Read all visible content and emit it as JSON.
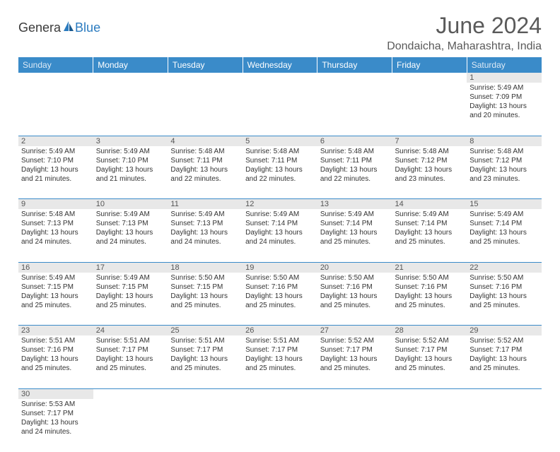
{
  "logo": {
    "text1": "Genera",
    "text2": "Blue"
  },
  "title": "June 2024",
  "location": "Dondaicha, Maharashtra, India",
  "colors": {
    "header_bg": "#3a8bc9",
    "header_fg": "#ffffff",
    "header_weekend_fg": "#dce9f5",
    "daynum_bg": "#e8e8e8",
    "daynum_fg": "#555555",
    "border": "#3a8bc9",
    "logo_accent": "#2b7bbf",
    "text": "#333333"
  },
  "weekdays": [
    "Sunday",
    "Monday",
    "Tuesday",
    "Wednesday",
    "Thursday",
    "Friday",
    "Saturday"
  ],
  "weeks": [
    {
      "nums": [
        "",
        "",
        "",
        "",
        "",
        "",
        "1"
      ],
      "cells": [
        null,
        null,
        null,
        null,
        null,
        null,
        {
          "sr": "5:49 AM",
          "ss": "7:09 PM",
          "dl": "13 hours and 20 minutes."
        }
      ]
    },
    {
      "nums": [
        "2",
        "3",
        "4",
        "5",
        "6",
        "7",
        "8"
      ],
      "cells": [
        {
          "sr": "5:49 AM",
          "ss": "7:10 PM",
          "dl": "13 hours and 21 minutes."
        },
        {
          "sr": "5:49 AM",
          "ss": "7:10 PM",
          "dl": "13 hours and 21 minutes."
        },
        {
          "sr": "5:48 AM",
          "ss": "7:11 PM",
          "dl": "13 hours and 22 minutes."
        },
        {
          "sr": "5:48 AM",
          "ss": "7:11 PM",
          "dl": "13 hours and 22 minutes."
        },
        {
          "sr": "5:48 AM",
          "ss": "7:11 PM",
          "dl": "13 hours and 22 minutes."
        },
        {
          "sr": "5:48 AM",
          "ss": "7:12 PM",
          "dl": "13 hours and 23 minutes."
        },
        {
          "sr": "5:48 AM",
          "ss": "7:12 PM",
          "dl": "13 hours and 23 minutes."
        }
      ]
    },
    {
      "nums": [
        "9",
        "10",
        "11",
        "12",
        "13",
        "14",
        "15"
      ],
      "cells": [
        {
          "sr": "5:48 AM",
          "ss": "7:13 PM",
          "dl": "13 hours and 24 minutes."
        },
        {
          "sr": "5:49 AM",
          "ss": "7:13 PM",
          "dl": "13 hours and 24 minutes."
        },
        {
          "sr": "5:49 AM",
          "ss": "7:13 PM",
          "dl": "13 hours and 24 minutes."
        },
        {
          "sr": "5:49 AM",
          "ss": "7:14 PM",
          "dl": "13 hours and 24 minutes."
        },
        {
          "sr": "5:49 AM",
          "ss": "7:14 PM",
          "dl": "13 hours and 25 minutes."
        },
        {
          "sr": "5:49 AM",
          "ss": "7:14 PM",
          "dl": "13 hours and 25 minutes."
        },
        {
          "sr": "5:49 AM",
          "ss": "7:14 PM",
          "dl": "13 hours and 25 minutes."
        }
      ]
    },
    {
      "nums": [
        "16",
        "17",
        "18",
        "19",
        "20",
        "21",
        "22"
      ],
      "cells": [
        {
          "sr": "5:49 AM",
          "ss": "7:15 PM",
          "dl": "13 hours and 25 minutes."
        },
        {
          "sr": "5:49 AM",
          "ss": "7:15 PM",
          "dl": "13 hours and 25 minutes."
        },
        {
          "sr": "5:50 AM",
          "ss": "7:15 PM",
          "dl": "13 hours and 25 minutes."
        },
        {
          "sr": "5:50 AM",
          "ss": "7:16 PM",
          "dl": "13 hours and 25 minutes."
        },
        {
          "sr": "5:50 AM",
          "ss": "7:16 PM",
          "dl": "13 hours and 25 minutes."
        },
        {
          "sr": "5:50 AM",
          "ss": "7:16 PM",
          "dl": "13 hours and 25 minutes."
        },
        {
          "sr": "5:50 AM",
          "ss": "7:16 PM",
          "dl": "13 hours and 25 minutes."
        }
      ]
    },
    {
      "nums": [
        "23",
        "24",
        "25",
        "26",
        "27",
        "28",
        "29"
      ],
      "cells": [
        {
          "sr": "5:51 AM",
          "ss": "7:16 PM",
          "dl": "13 hours and 25 minutes."
        },
        {
          "sr": "5:51 AM",
          "ss": "7:17 PM",
          "dl": "13 hours and 25 minutes."
        },
        {
          "sr": "5:51 AM",
          "ss": "7:17 PM",
          "dl": "13 hours and 25 minutes."
        },
        {
          "sr": "5:51 AM",
          "ss": "7:17 PM",
          "dl": "13 hours and 25 minutes."
        },
        {
          "sr": "5:52 AM",
          "ss": "7:17 PM",
          "dl": "13 hours and 25 minutes."
        },
        {
          "sr": "5:52 AM",
          "ss": "7:17 PM",
          "dl": "13 hours and 25 minutes."
        },
        {
          "sr": "5:52 AM",
          "ss": "7:17 PM",
          "dl": "13 hours and 25 minutes."
        }
      ]
    },
    {
      "nums": [
        "30",
        "",
        "",
        "",
        "",
        "",
        ""
      ],
      "cells": [
        {
          "sr": "5:53 AM",
          "ss": "7:17 PM",
          "dl": "13 hours and 24 minutes."
        },
        null,
        null,
        null,
        null,
        null,
        null
      ]
    }
  ],
  "labels": {
    "sunrise": "Sunrise:",
    "sunset": "Sunset:",
    "daylight": "Daylight:"
  }
}
